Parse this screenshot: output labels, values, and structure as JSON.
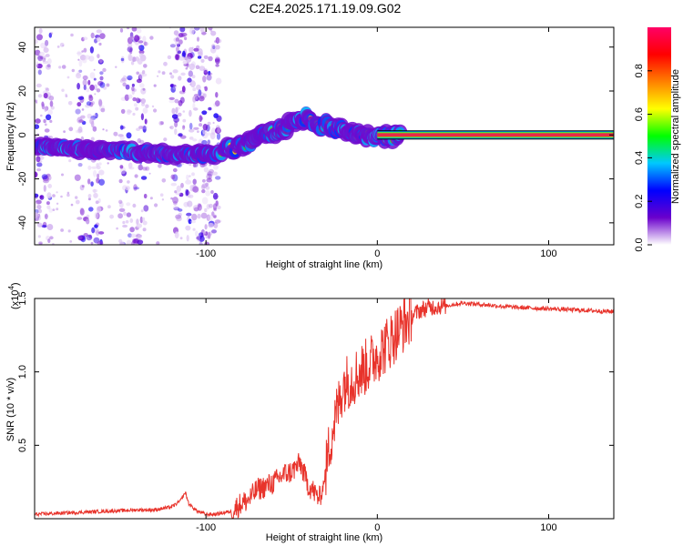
{
  "title": "C2E4.2025.171.19.09.G02",
  "colors": {
    "snr_line": "#e8332b",
    "ridge_line": "#e8284a",
    "background": "#ffffff"
  },
  "chart_data": [
    {
      "type": "heatmap",
      "xlabel": "Height of straight line (km)",
      "ylabel": "Frequency (Hz)",
      "xlim": [
        -200,
        138
      ],
      "ylim": [
        -50,
        49
      ],
      "x_ticks": [
        -100,
        0,
        100
      ],
      "y_ticks": [
        -40,
        -20,
        0,
        20,
        40
      ],
      "x_tick_labels": [
        "-100",
        "0",
        "100"
      ],
      "y_tick_labels": [
        "-40",
        "-20",
        "0",
        "20",
        "40"
      ],
      "colorbar": {
        "label": "Normalized spectral amplitude",
        "range": [
          0,
          1
        ],
        "ticks": [
          "0.0",
          "0.2",
          "0.4",
          "0.6",
          "0.8"
        ],
        "tick_values": [
          0.0,
          0.2,
          0.4,
          0.6,
          0.8
        ],
        "colors": [
          "#ffffff",
          "#6a00cc",
          "#0000ff",
          "#00c8ff",
          "#00ff00",
          "#ffff00",
          "#ff8000",
          "#ff0000",
          "#ff0066"
        ]
      },
      "ridge": {
        "x": [
          -200,
          -190,
          -180,
          -170,
          -160,
          -150,
          -140,
          -130,
          -120,
          -110,
          -100,
          -95,
          -90,
          -85,
          -80,
          -75,
          -70,
          -65,
          -60,
          -55,
          -50,
          -45,
          -42,
          -40,
          -38,
          -35,
          -32,
          -30,
          -25,
          -20,
          -15,
          -10,
          -5,
          0,
          5,
          10,
          15,
          20,
          40,
          60,
          80,
          100,
          120,
          138
        ],
        "y": [
          -5,
          -5.5,
          -6,
          -6.5,
          -7,
          -7.5,
          -8,
          -8.5,
          -9,
          -9,
          -9,
          -9,
          -8,
          -6,
          -5,
          -4,
          -2,
          0,
          1,
          3,
          5,
          7,
          8,
          7,
          5,
          3,
          4,
          5,
          3,
          2,
          1,
          0,
          -1,
          -1,
          -1,
          0,
          0,
          0,
          0,
          0,
          0,
          0,
          0,
          0
        ]
      },
      "noise_bands_x": [
        [
          -200,
          -190
        ],
        [
          -175,
          -160
        ],
        [
          -150,
          -135
        ],
        [
          -120,
          -92
        ]
      ]
    },
    {
      "type": "line",
      "xlabel": "Height of straight line (km)",
      "ylabel": "SNR (10 * v/v)",
      "y_multiplier_label": "(x10",
      "y_multiplier_exp": "4",
      "y_multiplier_close": ")",
      "xlim": [
        -200,
        138
      ],
      "ylim": [
        0,
        1.5
      ],
      "x_ticks": [
        -100,
        0,
        100
      ],
      "y_ticks": [
        0.5,
        1.0,
        1.5
      ],
      "x_tick_labels": [
        "-100",
        "0",
        "100"
      ],
      "y_tick_labels": [
        "0.5",
        "1.0",
        "1.5"
      ],
      "series": [
        {
          "x": [
            -200,
            -180,
            -160,
            -140,
            -130,
            -120,
            -115,
            -112,
            -110,
            -105,
            -100,
            -95,
            -90,
            -85,
            -80,
            -75,
            -70,
            -65,
            -60,
            -55,
            -50,
            -45,
            -42,
            -40,
            -38,
            -35,
            -33,
            -30,
            -28,
            -25,
            -22,
            -20,
            -15,
            -10,
            -5,
            0,
            5,
            10,
            15,
            20,
            25,
            30,
            40,
            50,
            60,
            80,
            100,
            120,
            138
          ],
          "y": [
            0.03,
            0.04,
            0.05,
            0.06,
            0.06,
            0.08,
            0.12,
            0.18,
            0.1,
            0.05,
            0.03,
            0.03,
            0.04,
            0.05,
            0.1,
            0.13,
            0.2,
            0.22,
            0.25,
            0.3,
            0.32,
            0.38,
            0.28,
            0.22,
            0.2,
            0.15,
            0.14,
            0.33,
            0.5,
            0.66,
            0.8,
            0.92,
            0.95,
            1.0,
            1.05,
            1.12,
            1.18,
            1.25,
            1.32,
            1.38,
            1.42,
            1.44,
            1.45,
            1.47,
            1.46,
            1.44,
            1.43,
            1.42,
            1.41
          ]
        }
      ]
    }
  ]
}
